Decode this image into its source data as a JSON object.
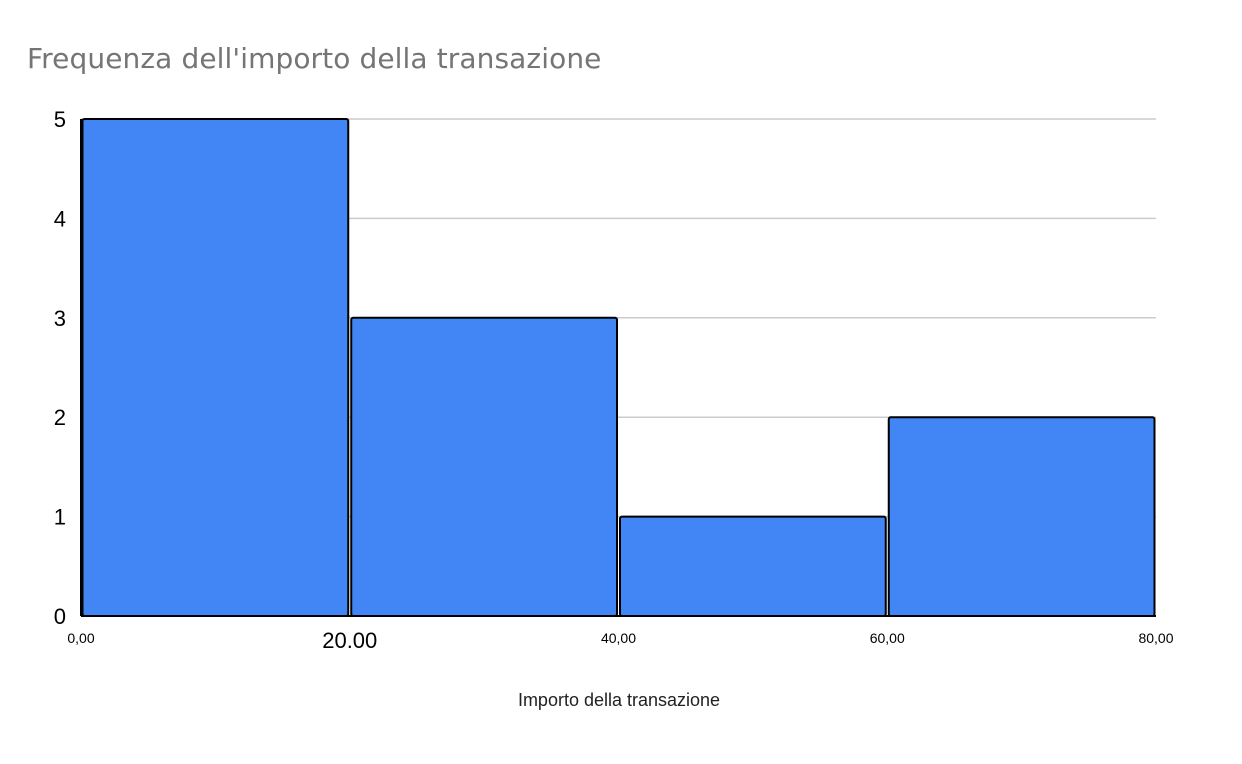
{
  "chart_data": {
    "type": "bar",
    "subtype": "histogram",
    "title": "Frequenza dell'importo della transazione",
    "xlabel": "Importo della transazione",
    "ylabel": "",
    "bins": [
      {
        "from": 0,
        "to": 20,
        "value": 5
      },
      {
        "from": 20,
        "to": 40,
        "value": 3
      },
      {
        "from": 40,
        "to": 60,
        "value": 1
      },
      {
        "from": 60,
        "to": 80,
        "value": 2
      }
    ],
    "x_ticks": [
      {
        "value": 0,
        "label": "0,00"
      },
      {
        "value": 20,
        "label": "20.00",
        "emphasis": "large"
      },
      {
        "value": 40,
        "label": "40,00"
      },
      {
        "value": 60,
        "label": "60,00"
      },
      {
        "value": 80,
        "label": "80,00"
      }
    ],
    "y_ticks": [
      0,
      1,
      2,
      3,
      4,
      5
    ],
    "xlim": [
      0,
      80
    ],
    "ylim": [
      0,
      5
    ],
    "grid": true,
    "legend": "none",
    "colors": {
      "bar": "#4285f4",
      "bar_stroke": "#000000",
      "grid": "#cccccc",
      "title": "#757575",
      "axis_text": "#000000"
    }
  }
}
